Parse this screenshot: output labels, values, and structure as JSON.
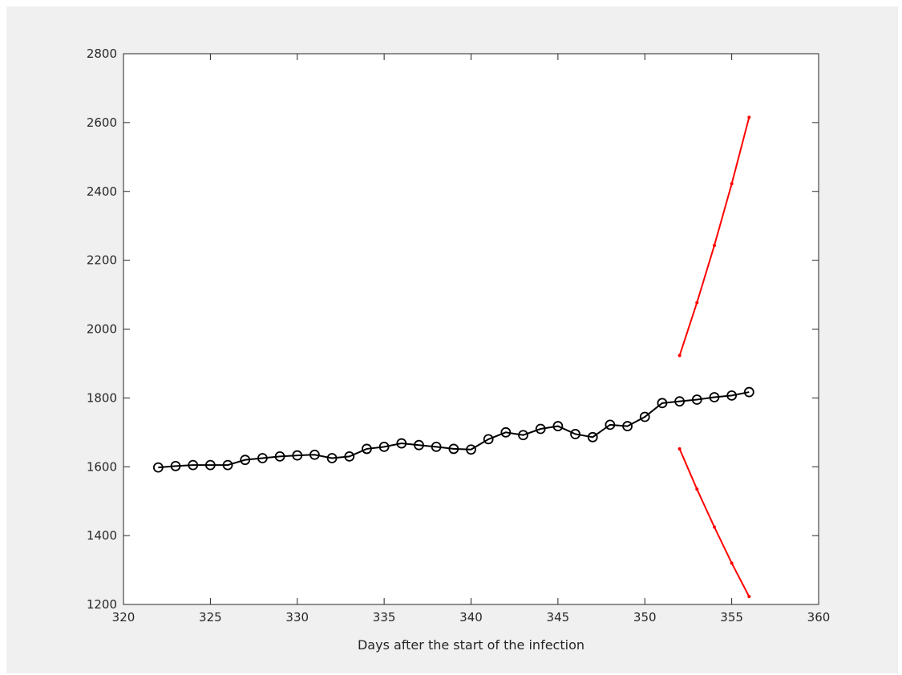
{
  "chart_data": {
    "type": "line",
    "title": "",
    "xlabel": "Days after the start of the infection",
    "ylabel": "",
    "xlim": [
      320,
      360
    ],
    "ylim": [
      1200,
      2800
    ],
    "xticks": [
      320,
      325,
      330,
      335,
      340,
      345,
      350,
      355,
      360
    ],
    "yticks": [
      1200,
      1400,
      1600,
      1800,
      2000,
      2200,
      2400,
      2600,
      2800
    ],
    "grid": false,
    "legend": "none",
    "series": [
      {
        "color": "#000000",
        "marker": "circle",
        "x": [
          322,
          323,
          324,
          325,
          326,
          327,
          328,
          329,
          330,
          331,
          332,
          333,
          334,
          335,
          336,
          337,
          338,
          339,
          340,
          341,
          342,
          343,
          344,
          345,
          346,
          347,
          348,
          349,
          350,
          351,
          352,
          353,
          354,
          355,
          356
        ],
        "y": [
          1598,
          1602,
          1605,
          1605,
          1605,
          1620,
          1625,
          1630,
          1633,
          1635,
          1625,
          1630,
          1652,
          1658,
          1668,
          1663,
          1658,
          1652,
          1650,
          1680,
          1700,
          1692,
          1710,
          1718,
          1695,
          1686,
          1722,
          1718,
          1745,
          1785,
          1790,
          1795,
          1802,
          1807,
          1817
        ]
      },
      {
        "color": "#ff0000",
        "marker": "dot",
        "x": [
          352,
          353,
          354,
          355,
          356
        ],
        "y": [
          1923,
          2077,
          2243,
          2422,
          2615
        ]
      },
      {
        "color": "#ff0000",
        "marker": "dot",
        "x": [
          352,
          353,
          354,
          355,
          356
        ],
        "y": [
          1652,
          1535,
          1425,
          1320,
          1223
        ]
      }
    ]
  }
}
